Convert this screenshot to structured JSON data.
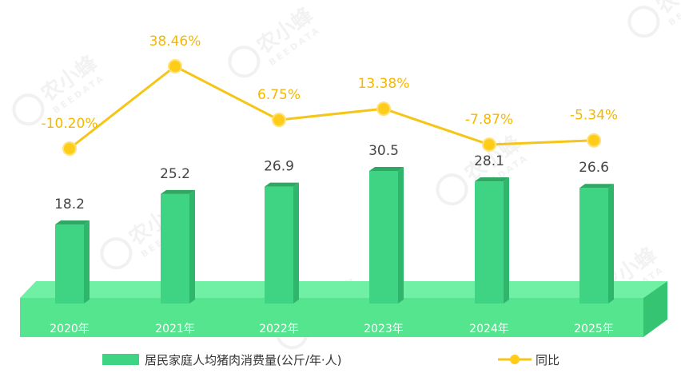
{
  "watermark": {
    "cn": "农小蜂",
    "en": "BEEDATA"
  },
  "chart_data": {
    "type": "bar",
    "categories": [
      "2020年",
      "2021年",
      "2022年",
      "2023年",
      "2024年",
      "2025年"
    ],
    "series": [
      {
        "name": "居民家庭人均猪肉消费量(公斤/年·人)",
        "type": "bar",
        "values": [
          18.2,
          25.2,
          26.9,
          30.5,
          28.1,
          26.6
        ]
      },
      {
        "name": "同比",
        "type": "line",
        "values": [
          -10.2,
          38.46,
          6.75,
          13.38,
          -7.87,
          -5.34
        ],
        "labels": [
          "-10.20%",
          "38.46%",
          "6.75%",
          "13.38%",
          "-7.87%",
          "-5.34%"
        ]
      }
    ],
    "legend_position": "bottom",
    "grid": false,
    "colors": {
      "bar": "#3fd483",
      "bar_side": "#2fb56c",
      "bar_top": "#2ea862",
      "platform": "#55e58f",
      "line": "#f5c518",
      "marker": "#ffcc1a"
    }
  }
}
